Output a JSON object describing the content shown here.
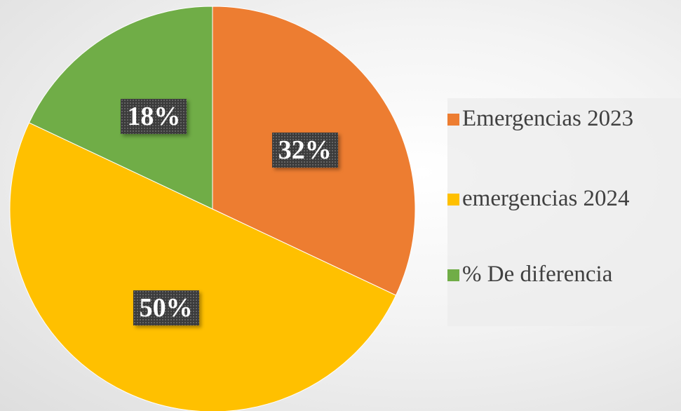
{
  "chart_data": {
    "type": "pie",
    "title": "",
    "categories": [
      "Emergencias 2023",
      "emergencias 2024",
      "% De diferencia"
    ],
    "values": [
      32,
      50,
      18
    ],
    "labels": [
      "32%",
      "50%",
      "18%"
    ],
    "colors": [
      "#ED7D31",
      "#FFC000",
      "#70AD47"
    ],
    "legend_position": "right",
    "start_angle": "12 o'clock, clockwise"
  },
  "legend": {
    "items": [
      {
        "label": "Emergencias 2023",
        "color": "#ED7D31"
      },
      {
        "label": "emergencias 2024",
        "color": "#FFC000"
      },
      {
        "label": "% De diferencia",
        "color": "#70AD47"
      }
    ]
  }
}
